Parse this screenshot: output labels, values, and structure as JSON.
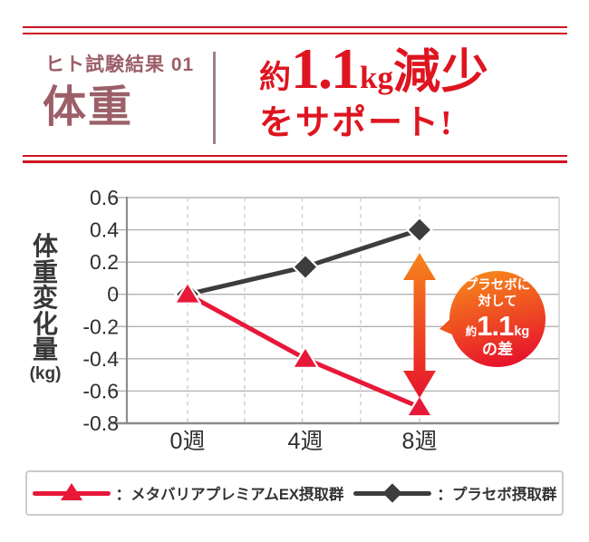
{
  "colors": {
    "brand_red": "#cf1420",
    "headline_red": "#de1520",
    "title_maroon": "#9c5f68",
    "highlight_yellow": "#f8e52c",
    "series_product": "#e81838",
    "series_placebo": "#3d3d3d",
    "arrow_orange": "#f6851b",
    "arrow_red": "#e7152b"
  },
  "header": {
    "kicker": "ヒト試験結果 01",
    "title": "体重",
    "headline": {
      "prefix": "約",
      "value": "1.1",
      "unit": "kg",
      "suffix": "減少",
      "line2": "をサポート!"
    }
  },
  "chart_data": {
    "type": "line",
    "title": "",
    "ylabel": "体重変化量",
    "ylabel_unit": "(kg)",
    "xlabel": "",
    "categories": [
      "0週",
      "4週",
      "8週"
    ],
    "ytick_labels": [
      "0.6",
      "0.4",
      "0.2",
      "0",
      "-0.2",
      "-0.4",
      "-0.6",
      "-0.8"
    ],
    "ylim": [
      -0.8,
      0.6
    ],
    "grid": true,
    "legend_position": "bottom",
    "series": [
      {
        "name": "：メタバリアプレミアムEX摂取群",
        "marker": "triangle",
        "color": "#e81838",
        "values": [
          0,
          -0.4,
          -0.7
        ]
      },
      {
        "name": "：プラセボ摂取群",
        "marker": "diamond",
        "color": "#3d3d3d",
        "values": [
          0,
          0.17,
          0.4
        ]
      }
    ]
  },
  "annotation": {
    "line1": "プラセボに",
    "line2": "対して",
    "value_prefix": "約",
    "value": "1.1",
    "value_unit": "kg",
    "suffix": "の差"
  }
}
